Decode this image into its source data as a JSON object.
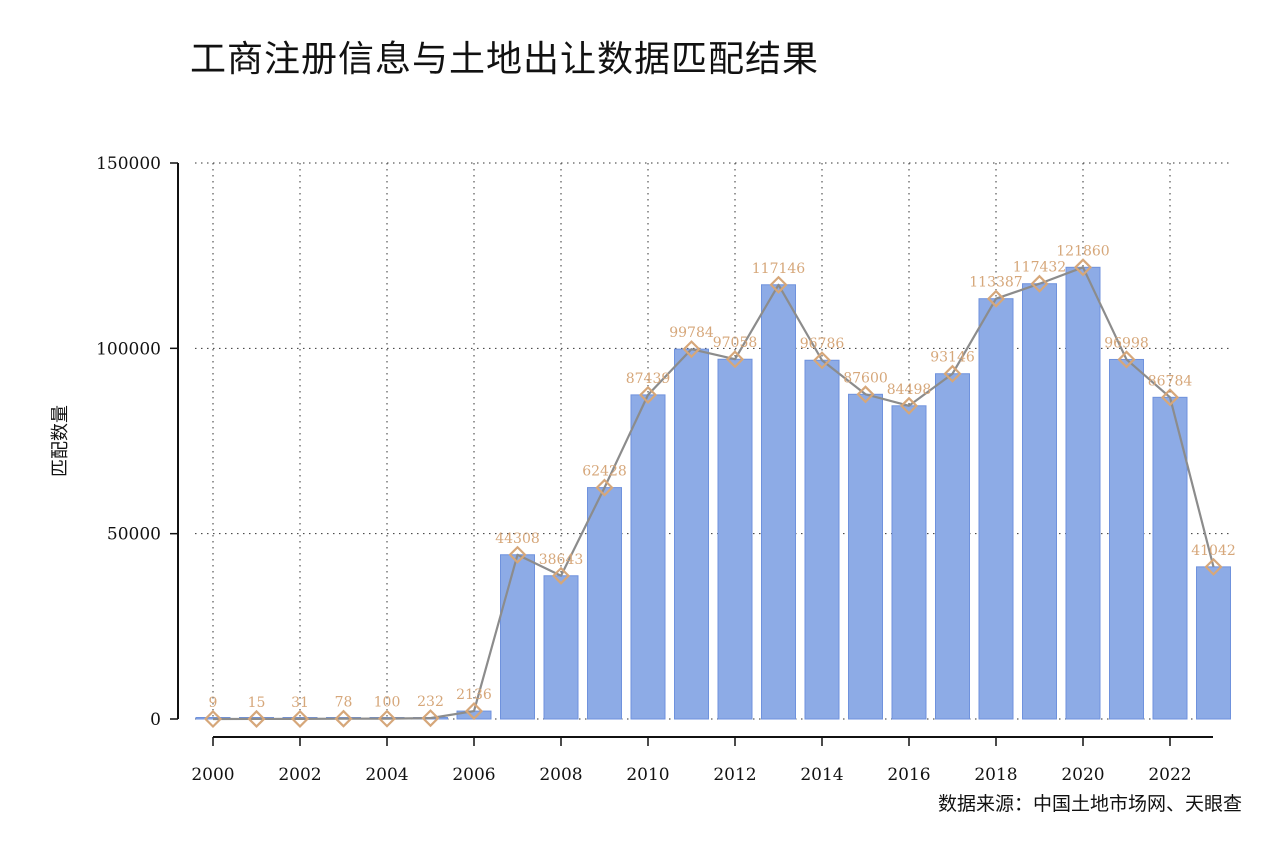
{
  "chart_data": {
    "type": "bar",
    "title": "工商注册信息与土地出让数据匹配结果",
    "xlabel": "",
    "ylabel": "匹配数量",
    "source": "数据来源：中国土地市场网、天眼查",
    "x": [
      2000,
      2001,
      2002,
      2003,
      2004,
      2005,
      2006,
      2007,
      2008,
      2009,
      2010,
      2011,
      2012,
      2013,
      2014,
      2015,
      2016,
      2017,
      2018,
      2019,
      2020,
      2021,
      2022,
      2023
    ],
    "values": [
      9,
      15,
      31,
      78,
      100,
      232,
      2136,
      44308,
      38643,
      62428,
      87439,
      99784,
      97058,
      117146,
      96786,
      87600,
      84498,
      93146,
      113387,
      117432,
      121860,
      96998,
      86784,
      41042
    ],
    "ylim": [
      0,
      150000
    ],
    "yticks": [
      0,
      50000,
      100000,
      150000
    ],
    "xticks": [
      2000,
      2002,
      2004,
      2006,
      2008,
      2010,
      2012,
      2014,
      2016,
      2018,
      2020,
      2022
    ],
    "overlay": "line with diamond markers on same values",
    "grid": true,
    "colors": {
      "bar_fill": "#8dabe6",
      "bar_stroke": "#6f92dd",
      "line": "#8c8c8c",
      "marker": "#d6a77a",
      "label": "#d6a77a",
      "grid": "#333333"
    }
  }
}
